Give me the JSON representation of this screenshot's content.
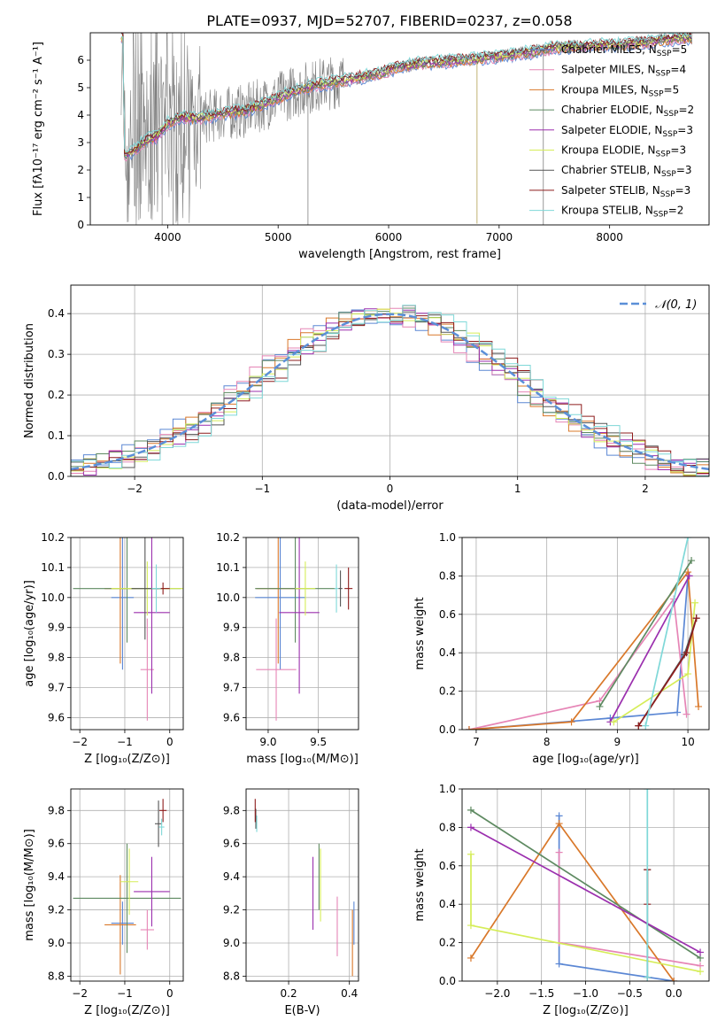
{
  "title": "PLATE=0937, MJD=52707, FIBERID=0237, z=0.058",
  "colors": {
    "chabrier_miles": "#5b87d4",
    "salpeter_miles": "#e685b6",
    "kroupa_miles": "#d9782a",
    "chabrier_elodie": "#5e8a61",
    "salpeter_elodie": "#9b2fae",
    "kroupa_elodie": "#d5ed58",
    "chabrier_stelib": "#555555",
    "salpeter_stelib": "#8e1c1c",
    "kroupa_stelib": "#7fd8d8",
    "data": "#808080",
    "gauss": "#5b8fd8"
  },
  "chart_data": [
    {
      "id": "spectrum",
      "type": "line",
      "xlabel": "wavelength [Angstrom, rest frame]",
      "ylabel": "Flux [fλ10⁻¹⁷ erg cm⁻² s⁻¹ A⁻¹]",
      "xlim": [
        3300,
        8900
      ],
      "ylim": [
        0,
        7
      ],
      "xticks": [
        4000,
        5000,
        6000,
        7000,
        8000
      ],
      "yticks": [
        0,
        1,
        2,
        3,
        4,
        5,
        6
      ],
      "legend_position": "right",
      "legend": [
        {
          "label": "Chabrier MILES, N",
          "sub": "SSP",
          "tail": "=5",
          "color": "chabrier_miles"
        },
        {
          "label": "Salpeter MILES, N",
          "sub": "SSP",
          "tail": "=4",
          "color": "salpeter_miles"
        },
        {
          "label": "Kroupa MILES, N",
          "sub": "SSP",
          "tail": "=5",
          "color": "kroupa_miles"
        },
        {
          "label": "Chabrier ELODIE, N",
          "sub": "SSP",
          "tail": "=2",
          "color": "chabrier_elodie"
        },
        {
          "label": "Salpeter ELODIE, N",
          "sub": "SSP",
          "tail": "=3",
          "color": "salpeter_elodie"
        },
        {
          "label": "Kroupa ELODIE, N",
          "sub": "SSP",
          "tail": "=3",
          "color": "kroupa_elodie"
        },
        {
          "label": "Chabrier STELIB, N",
          "sub": "SSP",
          "tail": "=3",
          "color": "chabrier_stelib"
        },
        {
          "label": "Salpeter STELIB, N",
          "sub": "SSP",
          "tail": "=3",
          "color": "salpeter_stelib"
        },
        {
          "label": "Kroupa STELIB, N",
          "sub": "SSP",
          "tail": "=2",
          "color": "kroupa_stelib"
        }
      ],
      "continuum": [
        [
          3600,
          2.5
        ],
        [
          3700,
          2.7
        ],
        [
          3800,
          3.1
        ],
        [
          3900,
          3.2
        ],
        [
          4000,
          3.7
        ],
        [
          4100,
          3.9
        ],
        [
          4200,
          3.9
        ],
        [
          4300,
          3.9
        ],
        [
          4500,
          4.05
        ],
        [
          4700,
          4.15
        ],
        [
          4900,
          4.45
        ],
        [
          5100,
          4.8
        ],
        [
          5300,
          5.05
        ],
        [
          5500,
          5.2
        ],
        [
          5700,
          5.35
        ],
        [
          5900,
          5.5
        ],
        [
          6100,
          5.75
        ],
        [
          6300,
          5.9
        ],
        [
          6500,
          5.95
        ],
        [
          6700,
          6.0
        ],
        [
          6900,
          6.1
        ],
        [
          7100,
          6.2
        ],
        [
          7300,
          6.3
        ],
        [
          7500,
          6.45
        ],
        [
          7700,
          6.5
        ],
        [
          7900,
          6.55
        ],
        [
          8100,
          6.55
        ],
        [
          8300,
          6.65
        ],
        [
          8500,
          6.75
        ],
        [
          8700,
          6.8
        ]
      ]
    },
    {
      "id": "residuals",
      "type": "step",
      "xlabel": "(data-model)/error",
      "ylabel": "Normed distribution",
      "xlim": [
        -2.5,
        2.5
      ],
      "ylim": [
        0,
        0.47
      ],
      "xticks": [
        -2,
        -1,
        0,
        1,
        2
      ],
      "yticks": [
        0.0,
        0.1,
        0.2,
        0.3,
        0.4
      ],
      "legend": [
        {
          "label": "𝒩(0, 1)",
          "color": "gauss",
          "style": "dashed"
        }
      ],
      "legend_position": "top-right",
      "bin_width": 0.1
    },
    {
      "id": "age_vs_Z",
      "type": "errorbar",
      "xlabel": "Z [log₁₀(Z/Z⊙)]",
      "ylabel": "age  [log₁₀(age/yr)]",
      "xlim": [
        -2.2,
        0.3
      ],
      "ylim": [
        9.56,
        10.2
      ],
      "xticks": [
        -2,
        -1,
        0
      ],
      "yticks": [
        9.6,
        9.7,
        9.8,
        9.9,
        10.0,
        10.1,
        10.2
      ],
      "points": [
        {
          "c": "chabrier_miles",
          "x": -1.05,
          "xe": 0.25,
          "y": 10.0,
          "ye": 0.24
        },
        {
          "c": "salpeter_miles",
          "x": -0.5,
          "xe": 0.15,
          "y": 9.76,
          "ye": 0.17
        },
        {
          "c": "kroupa_miles",
          "x": -1.1,
          "xe": 0.35,
          "y": 10.03,
          "ye": 0.25
        },
        {
          "c": "chabrier_elodie",
          "x": -0.95,
          "xe": 1.2,
          "y": 10.03,
          "ye": 0.18
        },
        {
          "c": "salpeter_elodie",
          "x": -0.4,
          "xe": 0.4,
          "y": 9.95,
          "ye": 0.27
        },
        {
          "c": "kroupa_elodie",
          "x": -0.5,
          "xe": 0.8,
          "y": 10.03,
          "ye": 0.09
        },
        {
          "c": "chabrier_stelib",
          "x": -0.55,
          "xe": 0.3,
          "y": 10.03,
          "ye": 0.17
        },
        {
          "c": "salpeter_stelib",
          "x": -0.15,
          "xe": 0.15,
          "y": 10.03,
          "ye": 0.02
        },
        {
          "c": "kroupa_stelib",
          "x": -0.3,
          "xe": 0.1,
          "y": 10.03,
          "ye": 0.08
        }
      ]
    },
    {
      "id": "age_vs_mass",
      "type": "errorbar",
      "xlabel": "mass [log₁₀(M/M⊙)]",
      "ylabel": "",
      "xlim": [
        8.78,
        9.9
      ],
      "ylim": [
        9.56,
        10.2
      ],
      "xticks": [
        9.0,
        9.5
      ],
      "yticks": [
        9.6,
        9.7,
        9.8,
        9.9,
        10.0,
        10.1,
        10.2
      ],
      "points": [
        {
          "c": "chabrier_miles",
          "x": 9.12,
          "xe": 0.25,
          "y": 10.0,
          "ye": 0.24
        },
        {
          "c": "salpeter_miles",
          "x": 9.08,
          "xe": 0.2,
          "y": 9.76,
          "ye": 0.17
        },
        {
          "c": "kroupa_miles",
          "x": 9.1,
          "xe": 0.22,
          "y": 10.03,
          "ye": 0.25
        },
        {
          "c": "chabrier_elodie",
          "x": 9.27,
          "xe": 0.4,
          "y": 10.03,
          "ye": 0.18
        },
        {
          "c": "salpeter_elodie",
          "x": 9.31,
          "xe": 0.2,
          "y": 9.95,
          "ye": 0.27
        },
        {
          "c": "kroupa_elodie",
          "x": 9.37,
          "xe": 0.1,
          "y": 10.03,
          "ye": 0.09
        },
        {
          "c": "chabrier_stelib",
          "x": 9.72,
          "xe": 0.02,
          "y": 10.03,
          "ye": 0.06
        },
        {
          "c": "salpeter_stelib",
          "x": 9.8,
          "xe": 0.04,
          "y": 10.03,
          "ye": 0.07
        },
        {
          "c": "kroupa_stelib",
          "x": 9.68,
          "xe": 0.02,
          "y": 10.03,
          "ye": 0.08
        }
      ]
    },
    {
      "id": "mw_vs_age",
      "type": "line",
      "xlabel": "age  [log₁₀(age/yr)]",
      "ylabel": "mass weight",
      "xlim": [
        6.8,
        10.3
      ],
      "ylim": [
        0,
        1.0
      ],
      "xticks": [
        7,
        8,
        9,
        10
      ],
      "yticks": [
        0.0,
        0.2,
        0.4,
        0.6,
        0.8,
        1.0
      ],
      "series": [
        {
          "c": "chabrier_miles",
          "pts": [
            [
              6.9,
              0.0
            ],
            [
              8.9,
              0.06
            ],
            [
              9.85,
              0.09
            ],
            [
              10.0,
              0.8
            ]
          ]
        },
        {
          "c": "salpeter_miles",
          "pts": [
            [
              6.9,
              0.0
            ],
            [
              8.75,
              0.15
            ],
            [
              9.8,
              0.68
            ],
            [
              9.98,
              0.08
            ]
          ]
        },
        {
          "c": "kroupa_miles",
          "pts": [
            [
              6.9,
              0.0
            ],
            [
              8.35,
              0.04
            ],
            [
              10.0,
              0.82
            ],
            [
              10.15,
              0.12
            ]
          ]
        },
        {
          "c": "chabrier_elodie",
          "pts": [
            [
              8.75,
              0.12
            ],
            [
              10.05,
              0.88
            ]
          ]
        },
        {
          "c": "salpeter_elodie",
          "pts": [
            [
              8.9,
              0.04
            ],
            [
              10.02,
              0.8
            ]
          ]
        },
        {
          "c": "kroupa_elodie",
          "pts": [
            [
              8.95,
              0.04
            ],
            [
              10.0,
              0.29
            ],
            [
              10.1,
              0.66
            ]
          ]
        },
        {
          "c": "chabrier_stelib",
          "pts": [
            [
              9.3,
              0.02
            ],
            [
              9.95,
              0.39
            ],
            [
              10.12,
              0.58
            ]
          ]
        },
        {
          "c": "salpeter_stelib",
          "pts": [
            [
              9.3,
              0.02
            ],
            [
              9.98,
              0.4
            ],
            [
              10.12,
              0.58
            ]
          ]
        },
        {
          "c": "kroupa_stelib",
          "pts": [
            [
              9.4,
              0.02
            ],
            [
              10.0,
              1.0
            ]
          ]
        }
      ]
    },
    {
      "id": "mass_vs_Z",
      "type": "errorbar",
      "xlabel": "Z [log₁₀(Z/Z⊙)]",
      "ylabel": "mass [log₁₀(M/M⊙)]",
      "xlim": [
        -2.2,
        0.3
      ],
      "ylim": [
        8.77,
        9.93
      ],
      "xticks": [
        -2,
        -1,
        0
      ],
      "yticks": [
        8.8,
        9.0,
        9.2,
        9.4,
        9.6,
        9.8
      ],
      "points": [
        {
          "c": "chabrier_miles",
          "x": -1.05,
          "xe": 0.25,
          "y": 9.12,
          "ye": 0.13
        },
        {
          "c": "salpeter_miles",
          "x": -0.5,
          "xe": 0.15,
          "y": 9.08,
          "ye": 0.12
        },
        {
          "c": "kroupa_miles",
          "x": -1.1,
          "xe": 0.35,
          "y": 9.11,
          "ye": 0.3
        },
        {
          "c": "chabrier_elodie",
          "x": -0.95,
          "xe": 1.2,
          "y": 9.27,
          "ye": 0.33
        },
        {
          "c": "salpeter_elodie",
          "x": -0.4,
          "xe": 0.4,
          "y": 9.31,
          "ye": 0.21
        },
        {
          "c": "kroupa_elodie",
          "x": -0.9,
          "xe": 0.2,
          "y": 9.37,
          "ye": 0.2
        },
        {
          "c": "chabrier_stelib",
          "x": -0.25,
          "xe": 0.08,
          "y": 9.72,
          "ye": 0.14
        },
        {
          "c": "salpeter_stelib",
          "x": -0.15,
          "xe": 0.08,
          "y": 9.8,
          "ye": 0.07
        },
        {
          "c": "kroupa_stelib",
          "x": -0.18,
          "xe": 0.06,
          "y": 9.7,
          "ye": 0.05
        }
      ]
    },
    {
      "id": "mass_vs_ebv",
      "type": "errorbar",
      "xlabel": "E(B-V)",
      "ylabel": "",
      "xlim": [
        0.06,
        0.43
      ],
      "ylim": [
        8.77,
        9.93
      ],
      "xticks": [
        0.2,
        0.4
      ],
      "yticks": [
        8.8,
        9.0,
        9.2,
        9.4,
        9.6,
        9.8
      ],
      "points": [
        {
          "c": "chabrier_miles",
          "x": 0.415,
          "xe": 0,
          "y": 9.12,
          "ye": 0.13
        },
        {
          "c": "salpeter_miles",
          "x": 0.36,
          "xe": 0,
          "y": 9.1,
          "ye": 0.18
        },
        {
          "c": "kroupa_miles",
          "x": 0.41,
          "xe": 0,
          "y": 9.0,
          "ye": 0.2
        },
        {
          "c": "chabrier_elodie",
          "x": 0.3,
          "xe": 0,
          "y": 9.4,
          "ye": 0.2
        },
        {
          "c": "salpeter_elodie",
          "x": 0.28,
          "xe": 0,
          "y": 9.3,
          "ye": 0.22
        },
        {
          "c": "kroupa_elodie",
          "x": 0.305,
          "xe": 0,
          "y": 9.35,
          "ye": 0.22
        },
        {
          "c": "chabrier_stelib",
          "x": 0.092,
          "xe": 0,
          "y": 9.75,
          "ye": 0.06
        },
        {
          "c": "salpeter_stelib",
          "x": 0.09,
          "xe": 0,
          "y": 9.8,
          "ye": 0.07
        },
        {
          "c": "kroupa_stelib",
          "x": 0.095,
          "xe": 0,
          "y": 9.72,
          "ye": 0.05
        }
      ]
    },
    {
      "id": "mw_vs_Z",
      "type": "line",
      "xlabel": "Z [log₁₀(Z/Z⊙)]",
      "ylabel": "mass weight",
      "xlim": [
        -2.4,
        0.4
      ],
      "ylim": [
        0,
        1.0
      ],
      "xticks": [
        -2.0,
        -1.5,
        -1.0,
        -0.5,
        0.0
      ],
      "yticks": [
        0.0,
        0.2,
        0.4,
        0.6,
        0.8,
        1.0
      ],
      "series": [
        {
          "c": "chabrier_miles",
          "pts": [
            [
              -1.3,
              0.86
            ],
            [
              -1.3,
              0.09
            ],
            [
              0.0,
              0.0
            ]
          ]
        },
        {
          "c": "salpeter_miles",
          "pts": [
            [
              -1.3,
              0.67
            ],
            [
              -1.3,
              0.2
            ],
            [
              0.3,
              0.08
            ]
          ]
        },
        {
          "c": "kroupa_miles",
          "pts": [
            [
              -2.3,
              0.12
            ],
            [
              -1.3,
              0.82
            ],
            [
              0.0,
              0.0
            ]
          ]
        },
        {
          "c": "chabrier_elodie",
          "pts": [
            [
              -2.3,
              0.89
            ],
            [
              0.3,
              0.12
            ]
          ]
        },
        {
          "c": "salpeter_elodie",
          "pts": [
            [
              -2.3,
              0.8
            ],
            [
              0.3,
              0.15
            ]
          ]
        },
        {
          "c": "kroupa_elodie",
          "pts": [
            [
              -2.3,
              0.66
            ],
            [
              -2.3,
              0.29
            ],
            [
              0.3,
              0.05
            ]
          ]
        },
        {
          "c": "chabrier_stelib",
          "pts": [
            [
              -0.3,
              0.58
            ],
            [
              -0.3,
              0.02
            ]
          ]
        },
        {
          "c": "salpeter_stelib",
          "pts": [
            [
              -0.3,
              0.58
            ],
            [
              -0.3,
              0.4
            ]
          ]
        },
        {
          "c": "kroupa_stelib",
          "pts": [
            [
              -0.3,
              1.0
            ],
            [
              -0.3,
              0.02
            ]
          ]
        }
      ]
    }
  ]
}
